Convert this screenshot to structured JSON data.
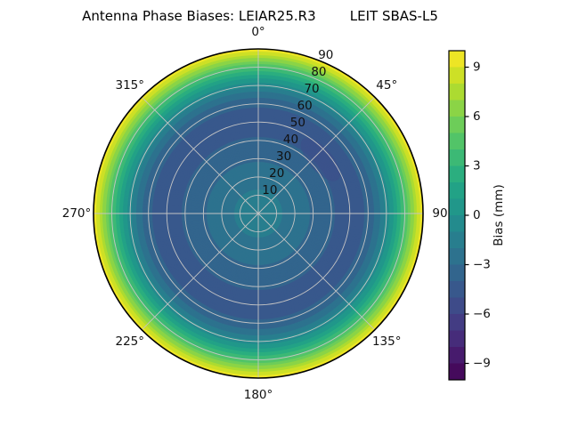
{
  "title": "Antenna Phase Biases: LEIAR25.R3        LEIT SBAS-L5",
  "colors": {
    "background": "#ffffff",
    "grid": "#c4c4c4",
    "rim": "#000000",
    "text": "#111111"
  },
  "chart_data": {
    "type": "heatmap",
    "projection": "polar",
    "title": "Antenna Phase Biases: LEIAR25.R3        LEIT SBAS-L5",
    "antenna": "LEIAR25.R3",
    "dome": "LEIT",
    "signal": "SBAS-L5",
    "colormap": "viridis",
    "colormap_anchors": [
      "#440154",
      "#482475",
      "#414487",
      "#355f8d",
      "#2a788e",
      "#21918c",
      "#22a884",
      "#44bf70",
      "#7ad151",
      "#bdde26",
      "#fde725"
    ],
    "levels": {
      "min": -10,
      "max": 10,
      "step": 1
    },
    "colorbar": {
      "label": "Bias (mm)",
      "ticks": [
        {
          "value": 9,
          "label": "9"
        },
        {
          "value": 6,
          "label": "6"
        },
        {
          "value": 3,
          "label": "3"
        },
        {
          "value": 0,
          "label": "0"
        },
        {
          "value": -3,
          "label": "−3"
        },
        {
          "value": -6,
          "label": "−6"
        },
        {
          "value": -9,
          "label": "−9"
        }
      ]
    },
    "theta_ticks": [
      {
        "angle_deg": 0,
        "label": "0°"
      },
      {
        "angle_deg": 45,
        "label": "45°"
      },
      {
        "angle_deg": 90,
        "label": "90"
      },
      {
        "angle_deg": 135,
        "label": "135°"
      },
      {
        "angle_deg": 180,
        "label": "180°"
      },
      {
        "angle_deg": 225,
        "label": "225°"
      },
      {
        "angle_deg": 270,
        "label": "270°"
      },
      {
        "angle_deg": 315,
        "label": "315°"
      }
    ],
    "radial_axis": {
      "max": 90,
      "grid_step": 10,
      "label_angle_deg": 22.5
    },
    "radial_ticks": [
      {
        "value": 10,
        "label": "10"
      },
      {
        "value": 20,
        "label": "20"
      },
      {
        "value": 30,
        "label": "30"
      },
      {
        "value": 40,
        "label": "40"
      },
      {
        "value": 50,
        "label": "50"
      },
      {
        "value": 60,
        "label": "60"
      },
      {
        "value": 70,
        "label": "70"
      },
      {
        "value": 80,
        "label": "80"
      },
      {
        "value": 90,
        "label": "90"
      }
    ],
    "profile": {
      "zenith_deg": [
        0,
        10,
        20,
        30,
        40,
        50,
        55,
        60,
        65,
        70,
        73,
        76,
        80,
        84,
        87,
        90
      ],
      "bias_mm": [
        -1.4,
        -1.8,
        -2.4,
        -3.1,
        -3.9,
        -4.4,
        -4.3,
        -3.8,
        -2.7,
        -0.7,
        0.4,
        1.9,
        4.0,
        6.3,
        8.0,
        9.8
      ]
    },
    "local_anomaly": {
      "azimuth_deg": 49,
      "zenith_deg": 45,
      "bias_mm": -5.5
    }
  }
}
